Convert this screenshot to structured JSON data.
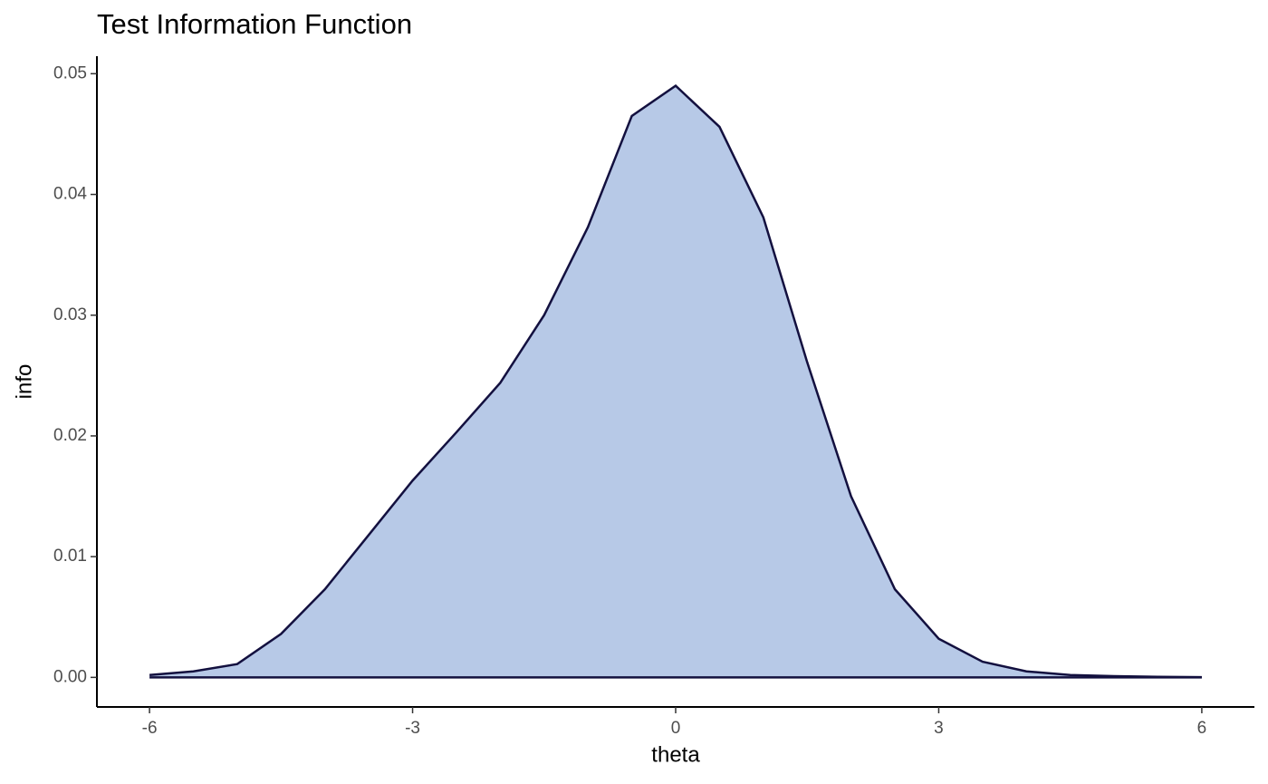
{
  "chart_data": {
    "type": "area",
    "title": "Test Information Function",
    "x_label": "theta",
    "y_label": "info",
    "x": [
      -6,
      -5.5,
      -5,
      -4.5,
      -4,
      -3.5,
      -3,
      -2.5,
      -2,
      -1.5,
      -1,
      -0.5,
      0,
      0.5,
      1,
      1.5,
      2,
      2.5,
      3,
      3.5,
      4,
      4.5,
      5,
      5.5,
      6
    ],
    "values": [
      0.0002,
      0.0005,
      0.0011,
      0.0036,
      0.0073,
      0.0118,
      0.0163,
      0.0203,
      0.0244,
      0.03,
      0.0373,
      0.0465,
      0.049,
      0.0456,
      0.0381,
      0.0261,
      0.015,
      0.0073,
      0.0032,
      0.0013,
      0.0005,
      0.0002,
      0.0001,
      5e-05,
      2e-05
    ],
    "color": "#b7c9e7",
    "line_color": "#13103f",
    "xlim": [
      -6.6,
      6.6
    ],
    "ylim": [
      -0.00245,
      0.05145
    ],
    "xticks": [
      -6,
      -3,
      0,
      3,
      6
    ],
    "yticks": [
      {
        "value": 0,
        "label": "0.00"
      },
      0.01,
      0.02,
      0.03,
      0.04,
      0.05
    ],
    "grid": false
  }
}
